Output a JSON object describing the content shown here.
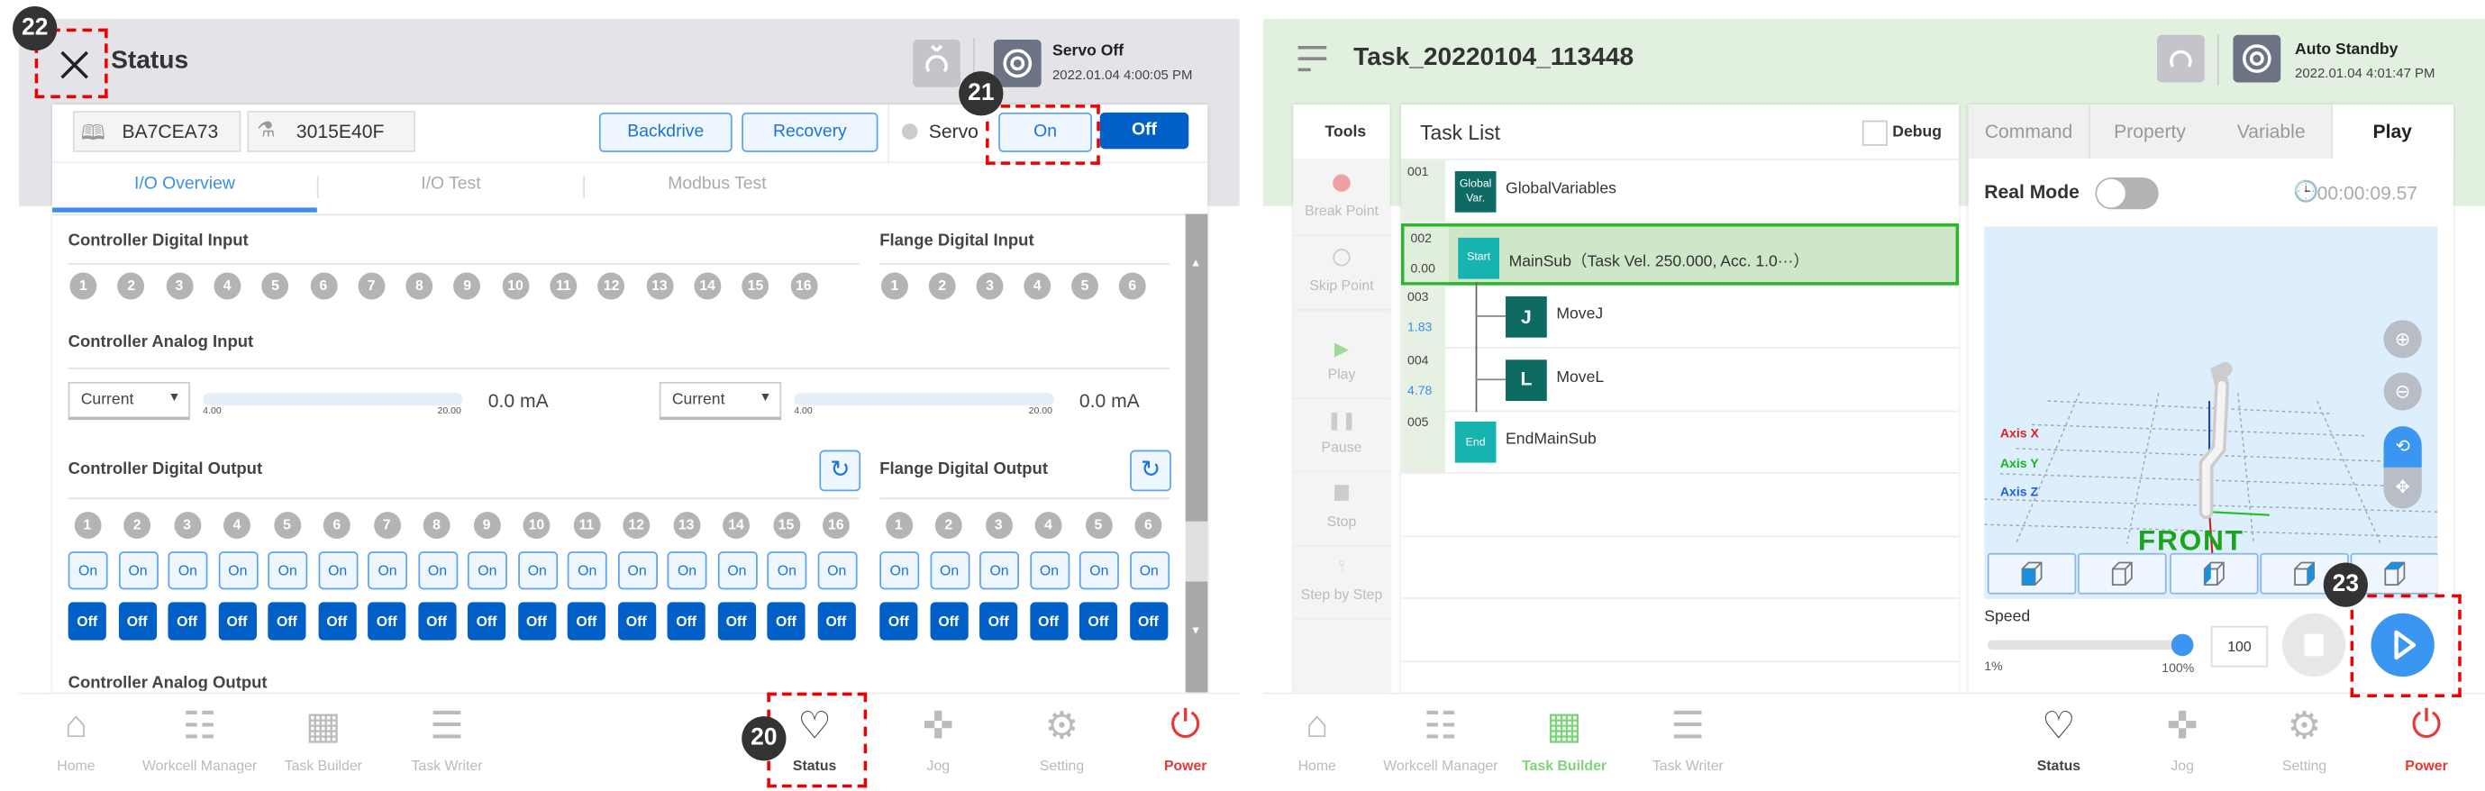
{
  "colors": {
    "primary": "#0060c8",
    "accent_blue": "#3a96f0",
    "header_left": "#e3e3e8",
    "header_right": "#e1f0df",
    "highlight_green": "#2db52d",
    "power_red": "#e53935",
    "task_builder_green": "#7fd37a",
    "annotation_red": "#e00000"
  },
  "annotations": [
    "22",
    "21",
    "20",
    "23"
  ],
  "status_app": {
    "title": "Status",
    "close_icon": "close-icon",
    "servo_state": "Servo Off",
    "datetime": "2022.01.04 4:00:05 PM",
    "controller_id": "BA7CEA73",
    "robot_id": "3015E40F",
    "backdrive": "Backdrive",
    "recovery": "Recovery",
    "servo_label": "Servo",
    "on": "On",
    "off": "Off",
    "tabs": [
      "I/O Overview",
      "I/O Test",
      "Modbus Test"
    ],
    "active_tab": "I/O Overview",
    "controller_digital_input": "Controller Digital Input",
    "flange_digital_input": "Flange Digital Input",
    "controller_analog_input": "Controller Analog Input",
    "analog_inputs": [
      {
        "mode": "Current",
        "min": "4.00",
        "max": "20.00",
        "value": "0.0 mA"
      },
      {
        "mode": "Current",
        "min": "4.00",
        "max": "20.00",
        "value": "0.0 mA"
      }
    ],
    "controller_digital_output": "Controller Digital Output",
    "flange_digital_output": "Flange Digital Output",
    "controller_analog_output": "Controller Analog Output",
    "controller_channels": [
      "1",
      "2",
      "3",
      "4",
      "5",
      "6",
      "7",
      "8",
      "9",
      "10",
      "11",
      "12",
      "13",
      "14",
      "15",
      "16"
    ],
    "flange_channels": [
      "1",
      "2",
      "3",
      "4",
      "5",
      "6"
    ],
    "nav": [
      {
        "label": "Home",
        "icon": "home-icon"
      },
      {
        "label": "Workcell Manager",
        "icon": "workcell-icon"
      },
      {
        "label": "Task Builder",
        "icon": "task-builder-icon"
      },
      {
        "label": "Task Writer",
        "icon": "task-writer-icon"
      },
      {
        "label": "Status",
        "icon": "status-icon",
        "active": true
      },
      {
        "label": "Jog",
        "icon": "jog-icon"
      },
      {
        "label": "Setting",
        "icon": "gear-icon"
      },
      {
        "label": "Power",
        "icon": "power-icon"
      }
    ]
  },
  "task_app": {
    "title": "Task_20220104_113448",
    "state": "Auto Standby",
    "datetime": "2022.01.04 4:01:47 PM",
    "tools_label": "Tools",
    "tools": [
      {
        "label": "Break Point",
        "icon": "breakpoint-icon"
      },
      {
        "label": "Skip Point",
        "icon": "skip-point-icon"
      },
      {
        "label": "Play",
        "icon": "play-icon"
      },
      {
        "label": "Pause",
        "icon": "pause-icon"
      },
      {
        "label": "Stop",
        "icon": "stop-icon"
      },
      {
        "label": "Step by Step",
        "icon": "step-icon"
      }
    ],
    "task_list_label": "Task List",
    "debug_label": "Debug",
    "tasks": [
      {
        "num": "001",
        "time": "",
        "block": "Global Var.",
        "name": "GlobalVariables",
        "color": "#0d6b64",
        "indent": false
      },
      {
        "num": "002",
        "time": "0.00",
        "block": "Start",
        "name": "MainSub（Task Vel. 250.000, Acc. 1.0···）",
        "color": "#17b3b0",
        "indent": false,
        "selected": true
      },
      {
        "num": "003",
        "time": "1.83",
        "block": "J",
        "name": "MoveJ",
        "color": "#0d6b64",
        "indent": true
      },
      {
        "num": "004",
        "time": "4.78",
        "block": "L",
        "name": "MoveL",
        "color": "#0d6b64",
        "indent": true
      },
      {
        "num": "005",
        "time": "",
        "block": "End",
        "name": "EndMainSub",
        "color": "#17b3b0",
        "indent": false
      }
    ],
    "right_tabs": [
      "Command",
      "Property",
      "Variable",
      "Play"
    ],
    "active_right_tab": "Play",
    "real_mode_label": "Real Mode",
    "real_mode": false,
    "elapsed": "00:00:09.57",
    "axis_labels": [
      {
        "text": "Axis X",
        "color": "#e02020"
      },
      {
        "text": "Axis Y",
        "color": "#18b818"
      },
      {
        "text": "Axis Z",
        "color": "#2060e0"
      }
    ],
    "viewport_label": "FRONT",
    "speed_label": "Speed",
    "speed_min": "1%",
    "speed_max": "100%",
    "speed_value": "100",
    "speed_fraction": 1.0,
    "nav": [
      {
        "label": "Home",
        "icon": "home-icon"
      },
      {
        "label": "Workcell Manager",
        "icon": "workcell-icon"
      },
      {
        "label": "Task Builder",
        "icon": "task-builder-icon",
        "active": true
      },
      {
        "label": "Task Writer",
        "icon": "task-writer-icon"
      },
      {
        "label": "Status",
        "icon": "status-icon"
      },
      {
        "label": "Jog",
        "icon": "jog-icon"
      },
      {
        "label": "Setting",
        "icon": "gear-icon"
      },
      {
        "label": "Power",
        "icon": "power-icon"
      }
    ]
  }
}
